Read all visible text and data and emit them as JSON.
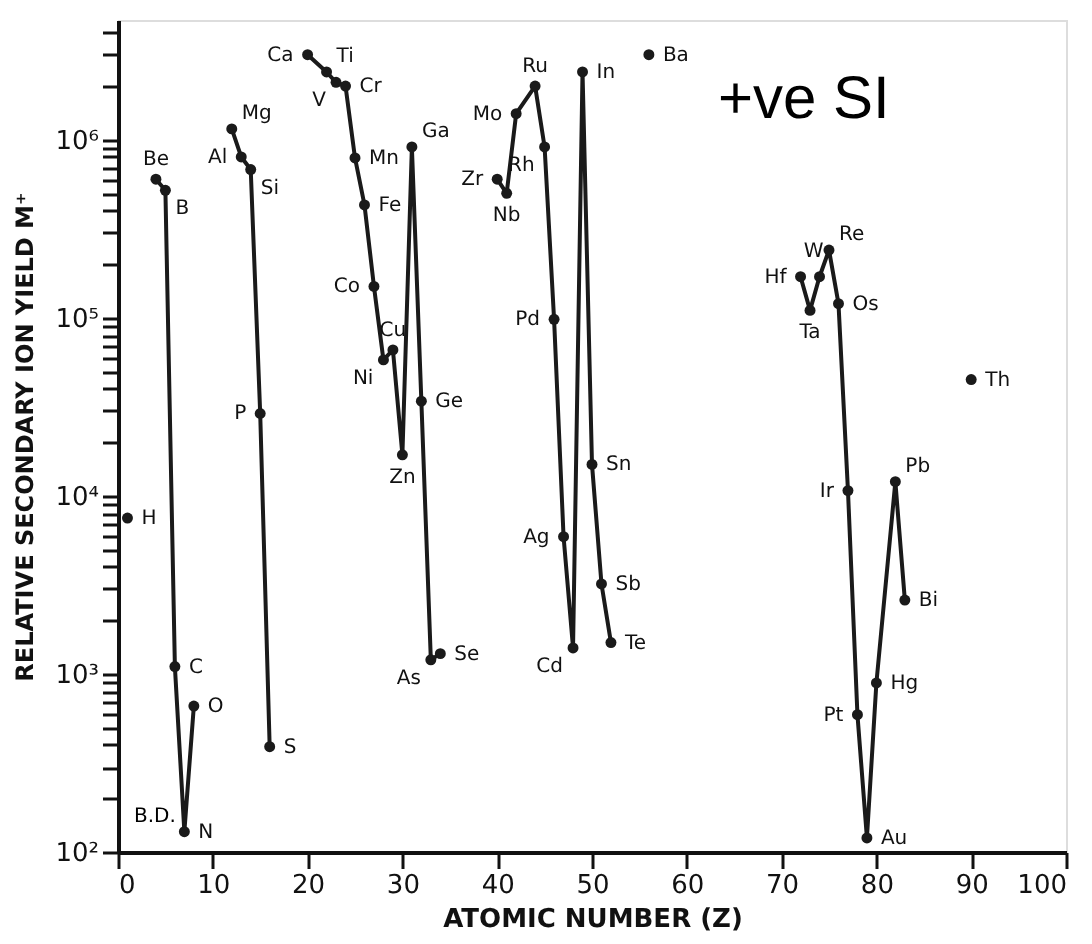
{
  "chart_data": {
    "type": "line",
    "xlabel": "ATOMIC NUMBER (Z)",
    "ylabel": "RELATIVE SECONDARY ION YIELD M⁺",
    "log": "y",
    "grid": false,
    "marker": "circle",
    "line_style": "solid",
    "xlim": [
      0,
      100
    ],
    "xticks": [
      0,
      10,
      20,
      30,
      40,
      50,
      60,
      70,
      80,
      90,
      100
    ],
    "ylim": [
      100,
      4700000
    ],
    "yticks": [
      {
        "value": 100,
        "label": "10²"
      },
      {
        "value": 200,
        "label": null
      },
      {
        "value": 300,
        "label": null
      },
      {
        "value": 400,
        "label": null
      },
      {
        "value": 500,
        "label": null
      },
      {
        "value": 600,
        "label": null
      },
      {
        "value": 700,
        "label": null
      },
      {
        "value": 800,
        "label": null
      },
      {
        "value": 900,
        "label": null
      },
      {
        "value": 1000,
        "label": "10³"
      },
      {
        "value": 2000,
        "label": null
      },
      {
        "value": 3000,
        "label": null
      },
      {
        "value": 4000,
        "label": null
      },
      {
        "value": 5000,
        "label": null
      },
      {
        "value": 6000,
        "label": null
      },
      {
        "value": 7000,
        "label": null
      },
      {
        "value": 8000,
        "label": null
      },
      {
        "value": 9000,
        "label": null
      },
      {
        "value": 10000,
        "label": "10⁴"
      },
      {
        "value": 20000,
        "label": null
      },
      {
        "value": 30000,
        "label": null
      },
      {
        "value": 40000,
        "label": null
      },
      {
        "value": 50000,
        "label": null
      },
      {
        "value": 60000,
        "label": null
      },
      {
        "value": 70000,
        "label": null
      },
      {
        "value": 80000,
        "label": null
      },
      {
        "value": 90000,
        "label": null
      },
      {
        "value": 100000,
        "label": "10⁵"
      },
      {
        "value": 200000,
        "label": null
      },
      {
        "value": 300000,
        "label": null
      },
      {
        "value": 400000,
        "label": null
      },
      {
        "value": 500000,
        "label": null
      },
      {
        "value": 600000,
        "label": null
      },
      {
        "value": 700000,
        "label": null
      },
      {
        "value": 800000,
        "label": null
      },
      {
        "value": 900000,
        "label": null
      },
      {
        "value": 1000000,
        "label": "10⁶"
      },
      {
        "value": 2000000,
        "label": null
      },
      {
        "value": 3000000,
        "label": null
      },
      {
        "value": 4000000,
        "label": null
      }
    ],
    "series": [
      {
        "color": "#1a1a1a",
        "x": [
          1
        ],
        "values": [
          7500
        ]
      },
      {
        "color": "#1a1a1a",
        "x": [
          4,
          5,
          6,
          7,
          8
        ],
        "values": [
          600000,
          520000,
          1100,
          130,
          660
        ]
      },
      {
        "color": "#1a1a1a",
        "x": [
          12,
          13,
          14,
          15,
          16
        ],
        "values": [
          1150000,
          800000,
          680000,
          29000,
          390
        ]
      },
      {
        "color": "#1a1a1a",
        "x": [
          20,
          22,
          23,
          24,
          25,
          26,
          27,
          28,
          29,
          30,
          31,
          32,
          33,
          34
        ],
        "values": [
          3000000,
          2400000,
          2100000,
          2000000,
          790000,
          430000,
          150000,
          58000,
          66000,
          17000,
          910000,
          34000,
          1200,
          1300
        ]
      },
      {
        "color": "#1a1a1a",
        "x": [
          40,
          41,
          42,
          44,
          45,
          46,
          47,
          48,
          49,
          50,
          51,
          52
        ],
        "values": [
          600000,
          500000,
          1400000,
          2000000,
          910000,
          98000,
          5900,
          1400,
          2400000,
          15000,
          3200,
          1500
        ]
      },
      {
        "color": "#1a1a1a",
        "x": [
          56
        ],
        "values": [
          3000000
        ]
      },
      {
        "color": "#1a1a1a",
        "x": [
          72,
          73,
          74,
          75,
          76,
          77,
          78,
          79,
          80,
          82,
          83
        ],
        "values": [
          170000,
          110000,
          170000,
          240000,
          120000,
          10700,
          590,
          120,
          890,
          12000,
          2600
        ]
      },
      {
        "color": "#1a1a1a",
        "x": [
          90
        ],
        "values": [
          45000
        ]
      }
    ],
    "annotations": [
      "+ve SI",
      "B.D.",
      {
        "text": "H",
        "x": 1,
        "y": 7500
      },
      {
        "text": "Be",
        "x": 4,
        "y": 600000
      },
      {
        "text": "B",
        "x": 5,
        "y": 520000
      },
      {
        "text": "C",
        "x": 6,
        "y": 1100
      },
      {
        "text": "N",
        "x": 7,
        "y": 130
      },
      {
        "text": "O",
        "x": 8,
        "y": 660
      },
      {
        "text": "Mg",
        "x": 12,
        "y": 1150000
      },
      {
        "text": "Al",
        "x": 13,
        "y": 800000
      },
      {
        "text": "Si",
        "x": 14,
        "y": 680000
      },
      {
        "text": "P",
        "x": 15,
        "y": 29000
      },
      {
        "text": "S",
        "x": 16,
        "y": 390
      },
      {
        "text": "Ca",
        "x": 20,
        "y": 3000000
      },
      {
        "text": "Ti",
        "x": 22,
        "y": 2400000
      },
      {
        "text": "V",
        "x": 23,
        "y": 2100000
      },
      {
        "text": "Cr",
        "x": 24,
        "y": 2000000
      },
      {
        "text": "Mn",
        "x": 25,
        "y": 790000
      },
      {
        "text": "Fe",
        "x": 26,
        "y": 430000
      },
      {
        "text": "Co",
        "x": 27,
        "y": 150000
      },
      {
        "text": "Ni",
        "x": 28,
        "y": 58000
      },
      {
        "text": "Cu",
        "x": 29,
        "y": 66000
      },
      {
        "text": "Zn",
        "x": 30,
        "y": 17000
      },
      {
        "text": "Ga",
        "x": 31,
        "y": 910000
      },
      {
        "text": "Ge",
        "x": 32,
        "y": 34000
      },
      {
        "text": "As",
        "x": 33,
        "y": 1200
      },
      {
        "text": "Se",
        "x": 34,
        "y": 1300
      },
      {
        "text": "Zr",
        "x": 40,
        "y": 600000
      },
      {
        "text": "Nb",
        "x": 41,
        "y": 500000
      },
      {
        "text": "Mo",
        "x": 42,
        "y": 1400000
      },
      {
        "text": "Ru",
        "x": 44,
        "y": 2000000
      },
      {
        "text": "Rh",
        "x": 45,
        "y": 910000
      },
      {
        "text": "Pd",
        "x": 46,
        "y": 98000
      },
      {
        "text": "Ag",
        "x": 47,
        "y": 5900
      },
      {
        "text": "Cd",
        "x": 48,
        "y": 1400
      },
      {
        "text": "In",
        "x": 49,
        "y": 2400000
      },
      {
        "text": "Sn",
        "x": 50,
        "y": 15000
      },
      {
        "text": "Sb",
        "x": 51,
        "y": 3200
      },
      {
        "text": "Te",
        "x": 52,
        "y": 1500
      },
      {
        "text": "Ba",
        "x": 56,
        "y": 3000000
      },
      {
        "text": "Hf",
        "x": 72,
        "y": 170000
      },
      {
        "text": "Ta",
        "x": 73,
        "y": 110000
      },
      {
        "text": "W",
        "x": 74,
        "y": 170000
      },
      {
        "text": "Re",
        "x": 75,
        "y": 240000
      },
      {
        "text": "Os",
        "x": 76,
        "y": 120000
      },
      {
        "text": "Ir",
        "x": 77,
        "y": 10700
      },
      {
        "text": "Pt",
        "x": 78,
        "y": 590
      },
      {
        "text": "Au",
        "x": 79,
        "y": 120
      },
      {
        "text": "Hg",
        "x": 80,
        "y": 890
      },
      {
        "text": "Pb",
        "x": 82,
        "y": 12000
      },
      {
        "text": "Bi",
        "x": 83,
        "y": 2600
      },
      {
        "text": "Th",
        "x": 90,
        "y": 45000
      }
    ]
  }
}
